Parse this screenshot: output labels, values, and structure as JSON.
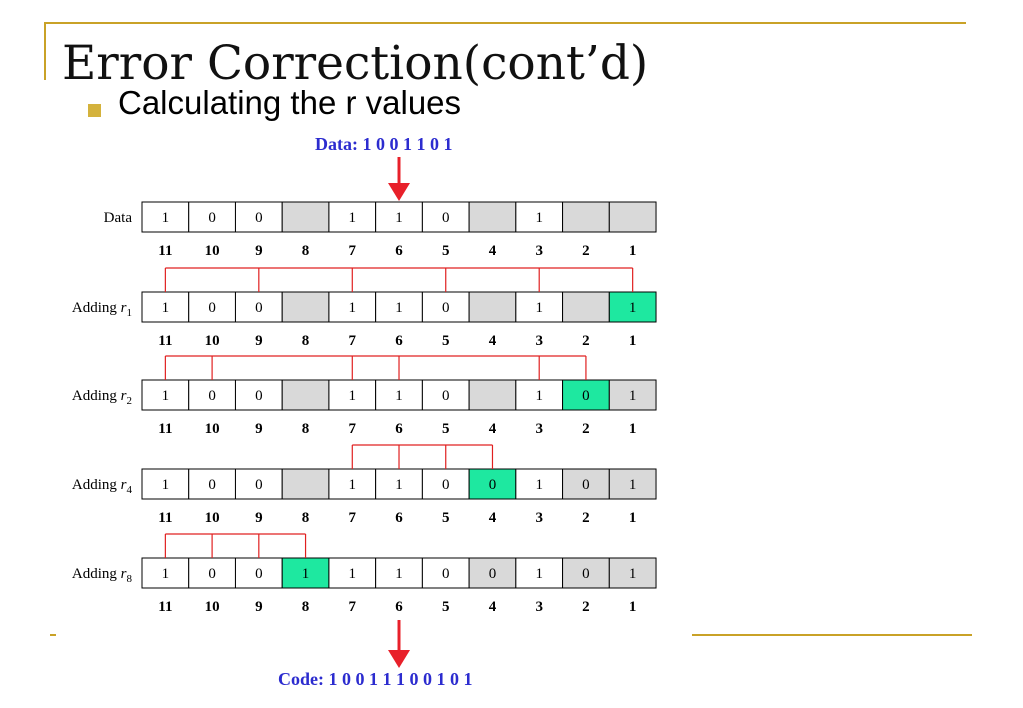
{
  "slide": {
    "title": "Error Correction(cont’d)",
    "bullet": "Calculating the r values"
  },
  "colors": {
    "accent_rule": "#c9a227",
    "bullet": "#d4b23c",
    "caption_blue": "#2c2ccf",
    "arrow_red": "#e8202a",
    "bracket_red": "#e02020",
    "highlight": "#1ee8a0",
    "empty_gray": "#d9d9d9"
  },
  "diagram": {
    "data_caption": "Data: 1 0 0 1 1 0 1",
    "code_caption": "Code: 1 0 0 1 1 1 0 0 1 0 1",
    "positions": [
      "11",
      "10",
      "9",
      "8",
      "7",
      "6",
      "5",
      "4",
      "3",
      "2",
      "1"
    ],
    "rows": [
      {
        "label": "Data",
        "sub": "",
        "cells": [
          "1",
          "0",
          "0",
          "",
          "1",
          "1",
          "0",
          "",
          "1",
          "",
          ""
        ],
        "gray": [
          3,
          7,
          9,
          10
        ],
        "green": [],
        "bracket": []
      },
      {
        "label": "Adding r",
        "sub": "1",
        "cells": [
          "1",
          "0",
          "0",
          "",
          "1",
          "1",
          "0",
          "",
          "1",
          "",
          "1"
        ],
        "gray": [
          3,
          7,
          9
        ],
        "green": [
          10
        ],
        "bracket": [
          0,
          2,
          4,
          6,
          8,
          10
        ]
      },
      {
        "label": "Adding r",
        "sub": "2",
        "cells": [
          "1",
          "0",
          "0",
          "",
          "1",
          "1",
          "0",
          "",
          "1",
          "0",
          "1"
        ],
        "gray": [
          3,
          7,
          10
        ],
        "green": [
          9
        ],
        "bracket": [
          0,
          1,
          4,
          5,
          8,
          9
        ]
      },
      {
        "label": "Adding r",
        "sub": "4",
        "cells": [
          "1",
          "0",
          "0",
          "",
          "1",
          "1",
          "0",
          "0",
          "1",
          "0",
          "1"
        ],
        "gray": [
          3,
          9,
          10
        ],
        "green": [
          7
        ],
        "bracket": [
          4,
          5,
          6,
          7
        ]
      },
      {
        "label": "Adding r",
        "sub": "8",
        "cells": [
          "1",
          "0",
          "0",
          "1",
          "1",
          "1",
          "0",
          "0",
          "1",
          "0",
          "1"
        ],
        "gray": [
          7,
          9,
          10
        ],
        "green": [
          3
        ],
        "bracket": [
          0,
          1,
          2,
          3
        ]
      }
    ]
  }
}
